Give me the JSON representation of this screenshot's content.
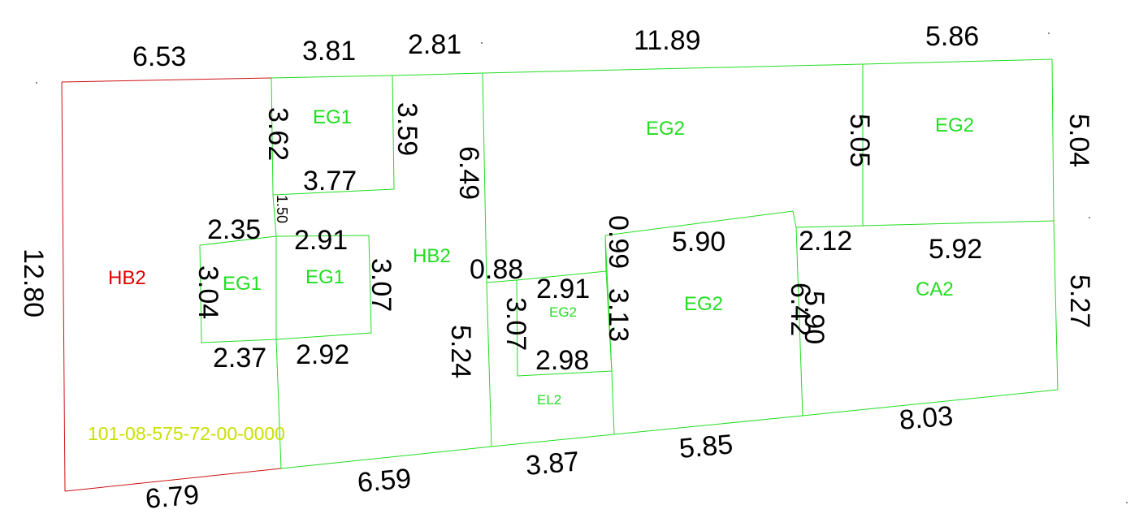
{
  "colors": {
    "green_lines": "#22dd22",
    "red_lines": "#cc1111",
    "green_labels": "#22dd22",
    "red_labels": "#e00000",
    "parcel_id": "#c8e000",
    "dimensions": "#000000"
  },
  "parcel_id": "101-08-575-72-00-0000",
  "zones": {
    "hb2_left": "HB2",
    "eg1_top": "EG1",
    "eg1_left": "EG1",
    "eg1_right": "EG1",
    "hb2_center": "HB2",
    "eg2_top": "EG2",
    "eg2_top_right": "EG2",
    "eg2_small": "EG2",
    "el2": "EL2",
    "eg2_mid": "EG2",
    "ca2": "CA2"
  },
  "dims": {
    "top_6_53": "6.53",
    "top_3_81": "3.81",
    "top_2_81": "2.81",
    "top_11_89": "11.89",
    "top_5_86": "5.86",
    "left_12_80": "12.80",
    "right_5_04": "5.04",
    "right_5_27": "5.27",
    "bottom_6_79": "6.79",
    "bottom_6_59": "6.59",
    "bottom_3_87": "3.87",
    "bottom_5_85": "5.85",
    "bottom_8_03": "8.03",
    "eg1top_3_62": "3.62",
    "eg1top_3_59": "3.59",
    "eg1top_3_77": "3.77",
    "small_1_50": "1.50",
    "eg1_2_35": "2.35",
    "eg1_2_91": "2.91",
    "eg1_3_04": "3.04",
    "eg1_3_07": "3.07",
    "eg1_2_37": "2.37",
    "eg1_2_92": "2.92",
    "col_6_49": "6.49",
    "col_5_24": "5.24",
    "eg2s_0_88": "0.88",
    "eg2s_2_91": "2.91",
    "eg2s_3_07": "3.07",
    "eg2s_2_98": "2.98",
    "eg2s_0_99": "0.99",
    "eg2s_3_13": "3.13",
    "eg2m_5_90": "5.90",
    "eg2m_6_42": "6.42",
    "ca2_5_90": "5.90",
    "ca2_2_12": "2.12",
    "ca2_5_92": "5.92",
    "eg2tr_5_05": "5.05"
  }
}
